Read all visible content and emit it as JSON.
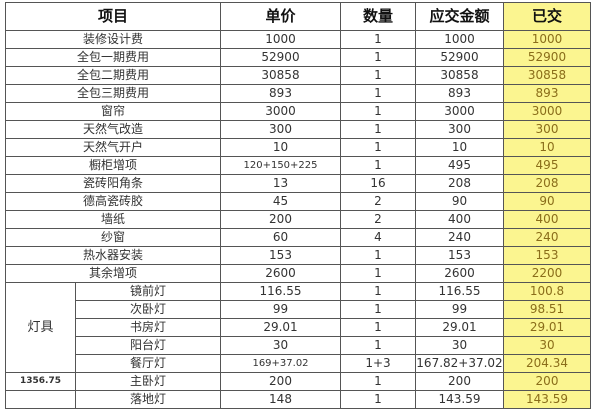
{
  "headers": {
    "item": "项目",
    "unit_price": "单价",
    "quantity": "数量",
    "amount_due": "应交金额",
    "paid": "已交"
  },
  "rows": [
    {
      "item": "装修设计费",
      "unit_price": "1000",
      "quantity": "1",
      "amount_due": "1000",
      "paid": "1000"
    },
    {
      "item": "全包一期费用",
      "unit_price": "52900",
      "quantity": "1",
      "amount_due": "52900",
      "paid": "52900"
    },
    {
      "item": "全包二期费用",
      "unit_price": "30858",
      "quantity": "1",
      "amount_due": "30858",
      "paid": "30858"
    },
    {
      "item": "全包三期费用",
      "unit_price": "893",
      "quantity": "1",
      "amount_due": "893",
      "paid": "893"
    },
    {
      "item": "窗帘",
      "unit_price": "3000",
      "quantity": "1",
      "amount_due": "3000",
      "paid": "3000"
    },
    {
      "item": "天然气改造",
      "unit_price": "300",
      "quantity": "1",
      "amount_due": "300",
      "paid": "300"
    },
    {
      "item": "天然气开户",
      "unit_price": "10",
      "quantity": "1",
      "amount_due": "10",
      "paid": "10"
    },
    {
      "item": "橱柜增项",
      "unit_price": "120+150+225",
      "quantity": "1",
      "amount_due": "495",
      "paid": "495"
    },
    {
      "item": "瓷砖阳角条",
      "unit_price": "13",
      "quantity": "16",
      "amount_due": "208",
      "paid": "208"
    },
    {
      "item": "德高瓷砖胶",
      "unit_price": "45",
      "quantity": "2",
      "amount_due": "90",
      "paid": "90"
    },
    {
      "item": "墙纸",
      "unit_price": "200",
      "quantity": "2",
      "amount_due": "400",
      "paid": "400"
    },
    {
      "item": "纱窗",
      "unit_price": "60",
      "quantity": "4",
      "amount_due": "240",
      "paid": "240"
    },
    {
      "item": "热水器安装",
      "unit_price": "153",
      "quantity": "1",
      "amount_due": "153",
      "paid": "153"
    },
    {
      "item": "其余增项",
      "unit_price": "2600",
      "quantity": "1",
      "amount_due": "2600",
      "paid": "2200"
    }
  ],
  "lamps": {
    "group_label": "灯具",
    "total": "1356.75",
    "rows": [
      {
        "item": "镜前灯",
        "unit_price": "116.55",
        "quantity": "1",
        "amount_due": "116.55",
        "paid": "100.8"
      },
      {
        "item": "次卧灯",
        "unit_price": "99",
        "quantity": "1",
        "amount_due": "99",
        "paid": "98.51"
      },
      {
        "item": "书房灯",
        "unit_price": "29.01",
        "quantity": "1",
        "amount_due": "29.01",
        "paid": "29.01"
      },
      {
        "item": "阳台灯",
        "unit_price": "30",
        "quantity": "1",
        "amount_due": "30",
        "paid": "30"
      },
      {
        "item": "餐厅灯",
        "unit_price": "169+37.02",
        "quantity": "1+3",
        "amount_due": "167.82+37.02",
        "paid": "204.34"
      },
      {
        "item": "主卧灯",
        "unit_price": "200",
        "quantity": "1",
        "amount_due": "200",
        "paid": "200"
      },
      {
        "item": "落地灯",
        "unit_price": "148",
        "quantity": "1",
        "amount_due": "143.59",
        "paid": "143.59"
      }
    ]
  },
  "colors": {
    "paid_column": "#fbf590",
    "border": "#555555"
  }
}
